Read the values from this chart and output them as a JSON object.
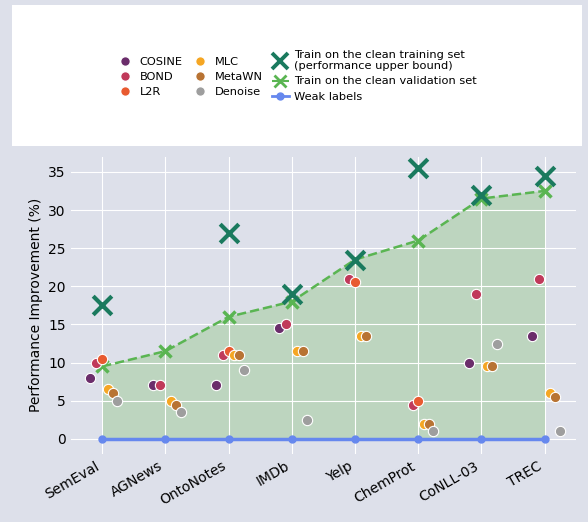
{
  "categories": [
    "SemEval",
    "AGNews",
    "OntoNotes",
    "IMDb",
    "Yelp",
    "ChemProt",
    "CoNLL-03",
    "TREC"
  ],
  "weak_labels": [
    0,
    0,
    0,
    0,
    0,
    0,
    0,
    0
  ],
  "train_clean_train": [
    17.5,
    null,
    27.0,
    19.0,
    23.5,
    35.5,
    32.0,
    34.5
  ],
  "train_clean_val": [
    9.5,
    11.5,
    16.0,
    18.0,
    23.5,
    26.0,
    31.5,
    32.5
  ],
  "cosine": [
    8.0,
    7.0,
    7.0,
    14.5,
    null,
    null,
    10.0,
    13.5
  ],
  "bond": [
    10.0,
    7.0,
    11.0,
    15.0,
    21.0,
    4.5,
    19.0,
    21.0
  ],
  "l2r": [
    10.5,
    null,
    11.5,
    null,
    20.5,
    5.0,
    null,
    null
  ],
  "mlc": [
    6.5,
    5.0,
    11.0,
    11.5,
    13.5,
    2.0,
    9.5,
    6.0
  ],
  "metawn": [
    6.0,
    4.5,
    11.0,
    11.5,
    13.5,
    2.0,
    9.5,
    5.5
  ],
  "denoise": [
    5.0,
    3.5,
    9.0,
    2.5,
    null,
    1.0,
    12.5,
    1.0
  ],
  "cosine_color": "#6B2D6B",
  "bond_color": "#C0395A",
  "l2r_color": "#E85A30",
  "mlc_color": "#F5A623",
  "metawn_color": "#B87333",
  "denoise_color": "#9E9E9E",
  "train_clean_train_color": "#1a7a5e",
  "train_clean_val_color": "#5ab552",
  "weak_labels_color": "#6688ee",
  "bg_color": "#dde0ea",
  "plot_bg_color": "#dde0ea",
  "fill_color": "#b8d4b8",
  "ylabel": "Performance Improvement (%)",
  "ylim": [
    -2,
    37
  ],
  "yticks": [
    0,
    5,
    10,
    15,
    20,
    25,
    30,
    35
  ]
}
